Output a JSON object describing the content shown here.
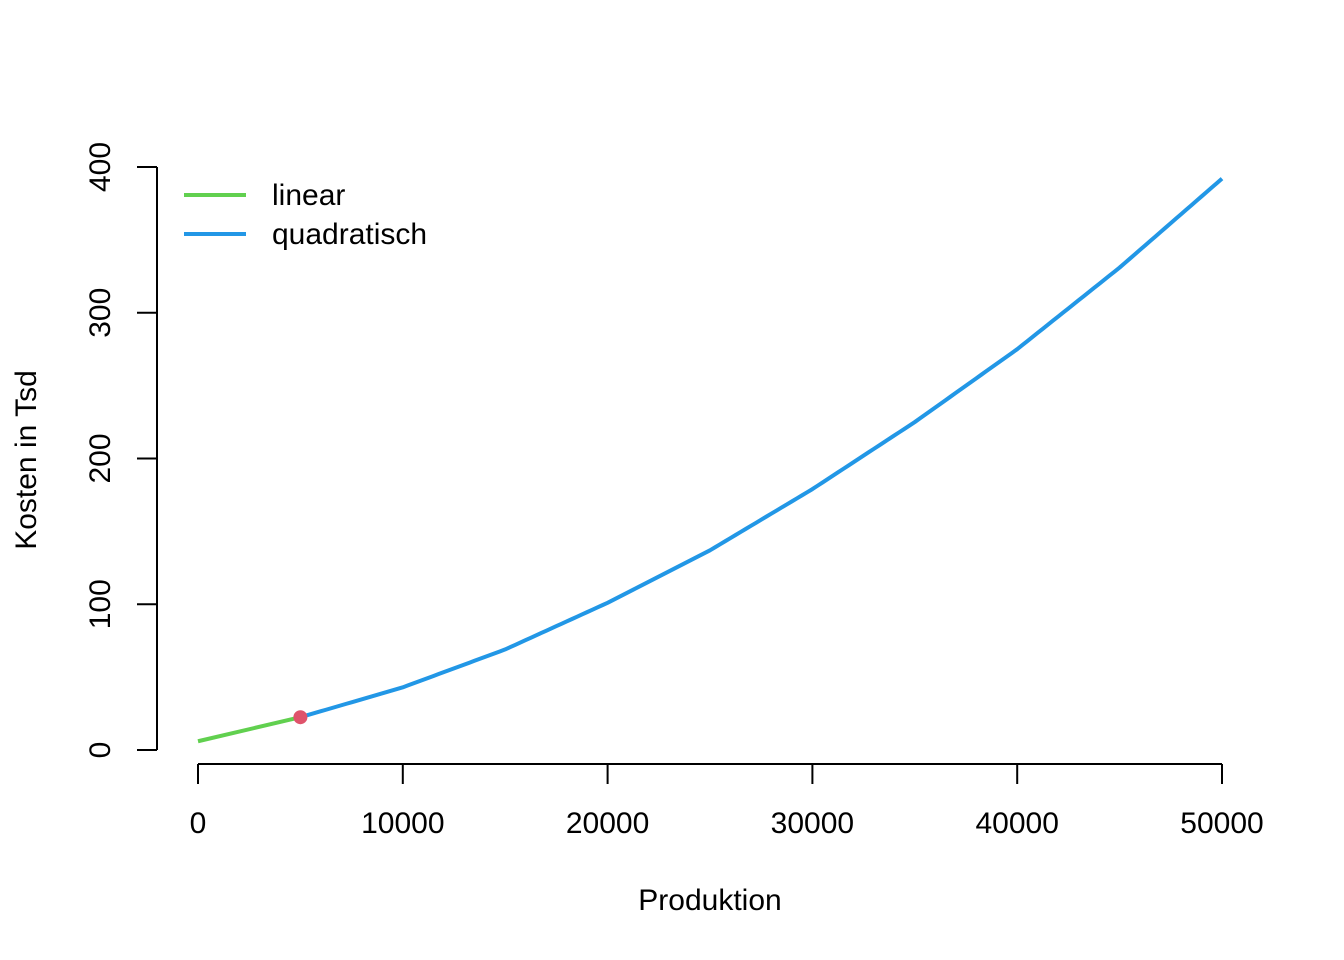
{
  "chart_data": {
    "type": "line",
    "title": "",
    "xlabel": "Produktion",
    "ylabel": "Kosten in Tsd",
    "xlim": [
      0,
      50000
    ],
    "ylim": [
      0,
      400
    ],
    "x_ticks": [
      0,
      10000,
      20000,
      30000,
      40000,
      50000
    ],
    "x_tick_labels": [
      "0",
      "10000",
      "20000",
      "30000",
      "40000",
      "50000"
    ],
    "y_ticks": [
      0,
      100,
      200,
      300,
      400
    ],
    "y_tick_labels": [
      "0",
      "100",
      "200",
      "300",
      "400"
    ],
    "grid": false,
    "legend_position": "top-left",
    "series": [
      {
        "name": "linear",
        "color": "#61D04F",
        "x": [
          0,
          5000
        ],
        "y": [
          6,
          22.5
        ]
      },
      {
        "name": "quadratisch",
        "color": "#2297E6",
        "x": [
          5000,
          10000,
          15000,
          20000,
          25000,
          30000,
          35000,
          40000,
          45000,
          50000
        ],
        "y": [
          22.5,
          43,
          69,
          101,
          137,
          179,
          225,
          275,
          331,
          392
        ]
      }
    ],
    "annotations": [
      {
        "type": "point",
        "x": 5000,
        "y": 22.5,
        "color": "#DF536B"
      }
    ]
  }
}
